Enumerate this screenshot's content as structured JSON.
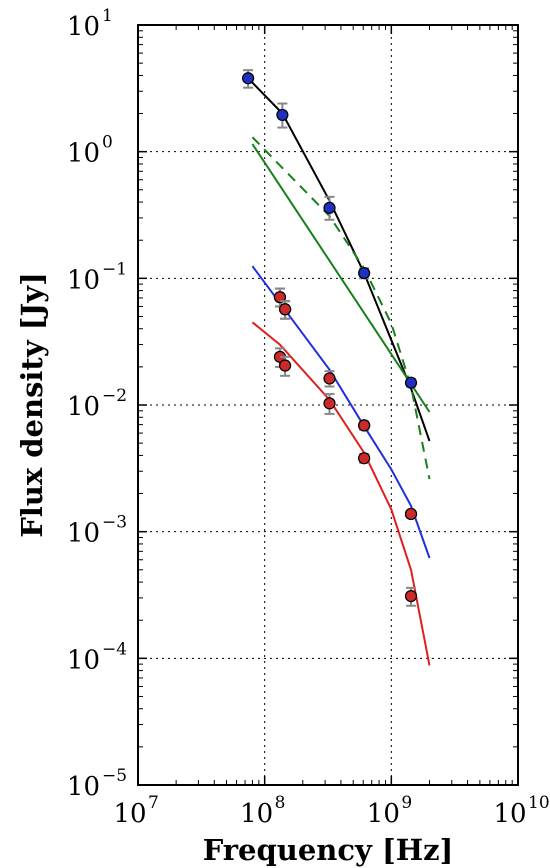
{
  "chart_data": {
    "type": "scatter",
    "xlabel": "Frequency [Hz]",
    "ylabel": "Flux density [Jy]",
    "x_scale": "log",
    "y_scale": "log",
    "xlim": [
      10000000.0,
      10000000000.0
    ],
    "ylim": [
      1e-05,
      10
    ],
    "grid": true,
    "grid_style": "dotted",
    "x_ticks": [
      {
        "base": "10",
        "exp": "7",
        "value": 10000000.0
      },
      {
        "base": "10",
        "exp": "8",
        "value": 100000000.0
      },
      {
        "base": "10",
        "exp": "9",
        "value": 1000000000.0
      },
      {
        "base": "10",
        "exp": "10",
        "value": 10000000000.0
      }
    ],
    "y_ticks": [
      {
        "base": "10",
        "exp": "−5",
        "value": 1e-05
      },
      {
        "base": "10",
        "exp": "−4",
        "value": 0.0001
      },
      {
        "base": "10",
        "exp": "−3",
        "value": 0.001
      },
      {
        "base": "10",
        "exp": "−2",
        "value": 0.01
      },
      {
        "base": "10",
        "exp": "−1",
        "value": 0.1
      },
      {
        "base": "10",
        "exp": "0",
        "value": 1
      },
      {
        "base": "10",
        "exp": "1",
        "value": 10
      }
    ],
    "points": [
      {
        "color": "#1f2fbf",
        "data": [
          {
            "x": 74000000.0,
            "y": 3.8,
            "err_lo": 3.2,
            "err_hi": 4.4
          },
          {
            "x": 138000000.0,
            "y": 1.95,
            "err_lo": 1.55,
            "err_hi": 2.4
          },
          {
            "x": 325000000.0,
            "y": 0.36,
            "err_lo": 0.29,
            "err_hi": 0.44
          },
          {
            "x": 610000000.0,
            "y": 0.11,
            "err_lo": 0.1,
            "err_hi": 0.12
          },
          {
            "x": 1430000000.0,
            "y": 0.015,
            "err_lo": 0.014,
            "err_hi": 0.016
          },
          {
            "x": 132000000.0,
            "y": 0.071,
            "err_lo": 0.06,
            "err_hi": 0.083
          },
          {
            "x": 145000000.0,
            "y": 0.057,
            "err_lo": 0.048,
            "err_hi": 0.066
          },
          {
            "x": 610000000.0,
            "y": 0.0069,
            "err_lo": 0.0064,
            "err_hi": 0.0074
          },
          {
            "x": 1430000000.0,
            "y": 0.00138,
            "err_lo": 0.0013,
            "err_hi": 0.00146
          }
        ]
      },
      {
        "color": "#cc2a2a",
        "data": [
          {
            "x": 132000000.0,
            "y": 0.024,
            "err_lo": 0.02,
            "err_hi": 0.028
          },
          {
            "x": 145000000.0,
            "y": 0.0205,
            "err_lo": 0.017,
            "err_hi": 0.024
          },
          {
            "x": 325000000.0,
            "y": 0.0103,
            "err_lo": 0.0085,
            "err_hi": 0.0122
          },
          {
            "x": 610000000.0,
            "y": 0.0038,
            "err_lo": 0.0035,
            "err_hi": 0.0041
          },
          {
            "x": 1430000000.0,
            "y": 0.00031,
            "err_lo": 0.00026,
            "err_hi": 0.00036
          },
          {
            "x": 325000000.0,
            "y": 0.0162,
            "err_lo": 0.014,
            "err_hi": 0.0185
          },
          {
            "x": 132000000.0,
            "y": 0.071,
            "err_lo": 0.06,
            "err_hi": 0.083
          },
          {
            "x": 145000000.0,
            "y": 0.057,
            "err_lo": 0.048,
            "err_hi": 0.066
          },
          {
            "x": 610000000.0,
            "y": 0.0069,
            "err_lo": 0.0064,
            "err_hi": 0.0074
          },
          {
            "x": 1430000000.0,
            "y": 0.00138,
            "err_lo": 0.0013,
            "err_hi": 0.00146
          }
        ]
      }
    ],
    "series": [
      {
        "color": "#000000",
        "style": "solid",
        "points": [
          [
            74000000.0,
            3.8
          ],
          [
            138000000.0,
            2.0
          ],
          [
            325000000.0,
            0.41
          ],
          [
            610000000.0,
            0.11
          ],
          [
            1430000000.0,
            0.0135
          ],
          [
            2000000000.0,
            0.0052
          ]
        ]
      },
      {
        "color": "#1a7f1a",
        "style": "solid",
        "points": [
          [
            80000000.0,
            1.15
          ],
          [
            2000000000.0,
            0.0088
          ]
        ]
      },
      {
        "color": "#1a7f1a",
        "style": "dashed",
        "points": [
          [
            80000000.0,
            1.3
          ],
          [
            325000000.0,
            0.31
          ],
          [
            610000000.0,
            0.12
          ],
          [
            1000000000.0,
            0.044
          ],
          [
            1430000000.0,
            0.014
          ],
          [
            2000000000.0,
            0.0026
          ]
        ]
      },
      {
        "color": "#1f2fe0",
        "style": "solid",
        "points": [
          [
            80000000.0,
            0.125
          ],
          [
            325000000.0,
            0.019
          ],
          [
            610000000.0,
            0.0068
          ],
          [
            1000000000.0,
            0.0031
          ],
          [
            1430000000.0,
            0.0016
          ],
          [
            2000000000.0,
            0.00062
          ]
        ]
      },
      {
        "color": "#e01f1f",
        "style": "solid",
        "points": [
          [
            80000000.0,
            0.045
          ],
          [
            132000000.0,
            0.03
          ],
          [
            325000000.0,
            0.011
          ],
          [
            610000000.0,
            0.0042
          ],
          [
            1000000000.0,
            0.0015
          ],
          [
            1430000000.0,
            0.0005
          ],
          [
            2000000000.0,
            8.8e-05
          ]
        ]
      }
    ]
  }
}
